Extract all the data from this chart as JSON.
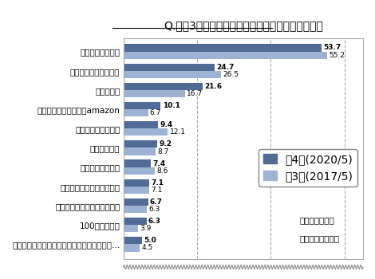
{
  "title": "Q.直近3年間に、カー用品をどこで買いましたか？",
  "categories": [
    "オンラインショップ：カー用品店・タイヤ専…",
    "100円ショップ",
    "ディスカウントストアの店頭",
    "オンラインショップ：楽天",
    "ガソリンスタンド",
    "整備・修理店",
    "タイヤ専門店の店頭",
    "オンラインショップ：amazon",
    "ディーラー",
    "ホームセンターの店頭",
    "カー用品店の店頭"
  ],
  "series1_label": "第4回(2020/5)",
  "series2_label": "第3回(2017/5)",
  "series1_values": [
    5.0,
    6.3,
    6.7,
    7.1,
    7.4,
    9.2,
    9.4,
    10.1,
    21.6,
    24.7,
    53.7
  ],
  "series2_values": [
    4.5,
    3.9,
    6.3,
    7.1,
    8.6,
    8.7,
    12.1,
    6.7,
    16.7,
    26.5,
    55.2
  ],
  "color1": "#4f6b96",
  "color2": "#9db3d4",
  "annotation_line1": "：直近３年間の",
  "annotation_line2": "　カー用品購入者",
  "xlim": [
    0,
    65
  ],
  "bar_height": 0.38,
  "vgrid_ticks": [
    20,
    40,
    60
  ]
}
